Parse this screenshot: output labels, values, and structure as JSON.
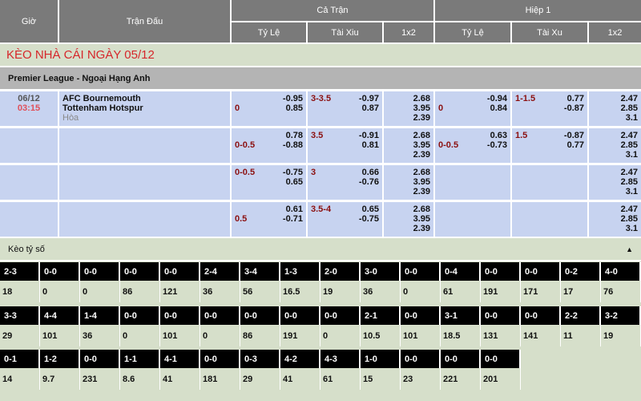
{
  "header": {
    "time": "Giờ",
    "match": "Trận Đấu",
    "full": "Cả Trận",
    "half": "Hiệp 1",
    "cols": [
      "Tỷ Lệ",
      "Tài Xiu",
      "1x2",
      "Tỷ Lệ",
      "Tài Xu",
      "1x2"
    ]
  },
  "title": "KÈO NHÀ CÁI NGÀY 05/12",
  "league": "Premier League - Ngoại Hạng Anh",
  "match": {
    "date": "06/12",
    "time": "03:15",
    "home": "AFC Bournemouth",
    "away": "Tottenham Hotspur",
    "draw": "Hòa"
  },
  "rows": [
    {
      "hc": "0",
      "hc1": "-0.95",
      "hc2": "0.85",
      "ou": "3-3.5",
      "ou1": "-0.97",
      "ou2": "0.87",
      "x": [
        "2.68",
        "3.95",
        "2.39"
      ],
      "hhc": "0",
      "hhc1": "-0.94",
      "hhc2": "0.84",
      "hou": "1-1.5",
      "hou1": "0.77",
      "hou2": "-0.87",
      "hx": [
        "2.47",
        "2.85",
        "3.1"
      ]
    },
    {
      "hc": "0-0.5",
      "hc1": "0.78",
      "hc2": "-0.88",
      "ou": "3.5",
      "ou1": "-0.91",
      "ou2": "0.81",
      "x": [
        "2.68",
        "3.95",
        "2.39"
      ],
      "hhc": "0-0.5",
      "hhc1": "0.63",
      "hhc2": "-0.73",
      "hou": "1.5",
      "hou1": "-0.87",
      "hou2": "0.77",
      "hx": [
        "2.47",
        "2.85",
        "3.1"
      ]
    },
    {
      "hc": "0-0.5",
      "hc1": "-0.75",
      "hc2": "0.65",
      "ou": "3",
      "ou1": "0.66",
      "ou2": "-0.76",
      "x": [
        "2.68",
        "3.95",
        "2.39"
      ],
      "hhc": "",
      "hhc1": "",
      "hhc2": "",
      "hou": "",
      "hou1": "",
      "hou2": "",
      "hx": [
        "2.47",
        "2.85",
        "3.1"
      ]
    },
    {
      "hc": "0.5",
      "hc1": "0.61",
      "hc2": "-0.71",
      "ou": "3.5-4",
      "ou1": "0.65",
      "ou2": "-0.75",
      "x": [
        "2.68",
        "3.95",
        "2.39"
      ],
      "hhc": "",
      "hhc1": "",
      "hhc2": "",
      "hou": "",
      "hou1": "",
      "hou2": "",
      "hx": [
        "2.47",
        "2.85",
        "3.1"
      ]
    }
  ],
  "score_section": {
    "label": "Kèo tỷ số",
    "collapse_icon": "triangle-up-icon"
  },
  "scores": [
    [
      [
        "2-3",
        "18"
      ],
      [
        "0-0",
        "0"
      ],
      [
        "0-0",
        "0"
      ],
      [
        "0-0",
        "86"
      ],
      [
        "0-0",
        "121"
      ],
      [
        "2-4",
        "36"
      ],
      [
        "3-4",
        "56"
      ],
      [
        "1-3",
        "16.5"
      ],
      [
        "2-0",
        "19"
      ],
      [
        "3-0",
        "36"
      ],
      [
        "0-0",
        "0"
      ],
      [
        "0-4",
        "61"
      ],
      [
        "0-0",
        "191"
      ],
      [
        "0-0",
        "171"
      ],
      [
        "0-2",
        "17"
      ],
      [
        "4-0",
        "76"
      ]
    ],
    [
      [
        "3-3",
        "29"
      ],
      [
        "4-4",
        "101"
      ],
      [
        "1-4",
        "36"
      ],
      [
        "0-0",
        "0"
      ],
      [
        "0-0",
        "101"
      ],
      [
        "0-0",
        "0"
      ],
      [
        "0-0",
        "86"
      ],
      [
        "0-0",
        "191"
      ],
      [
        "0-0",
        "0"
      ],
      [
        "2-1",
        "10.5"
      ],
      [
        "0-0",
        "101"
      ],
      [
        "3-1",
        "18.5"
      ],
      [
        "0-0",
        "131"
      ],
      [
        "0-0",
        "141"
      ],
      [
        "2-2",
        "11"
      ],
      [
        "3-2",
        "19"
      ]
    ],
    [
      [
        "0-1",
        "14"
      ],
      [
        "1-2",
        "9.7"
      ],
      [
        "0-0",
        "231"
      ],
      [
        "1-1",
        "8.6"
      ],
      [
        "4-1",
        "41"
      ],
      [
        "0-0",
        "181"
      ],
      [
        "0-3",
        "29"
      ],
      [
        "4-2",
        "41"
      ],
      [
        "4-3",
        "61"
      ],
      [
        "1-0",
        "15"
      ],
      [
        "0-0",
        "23"
      ],
      [
        "0-0",
        "221"
      ],
      [
        "0-0",
        "201"
      ]
    ]
  ]
}
